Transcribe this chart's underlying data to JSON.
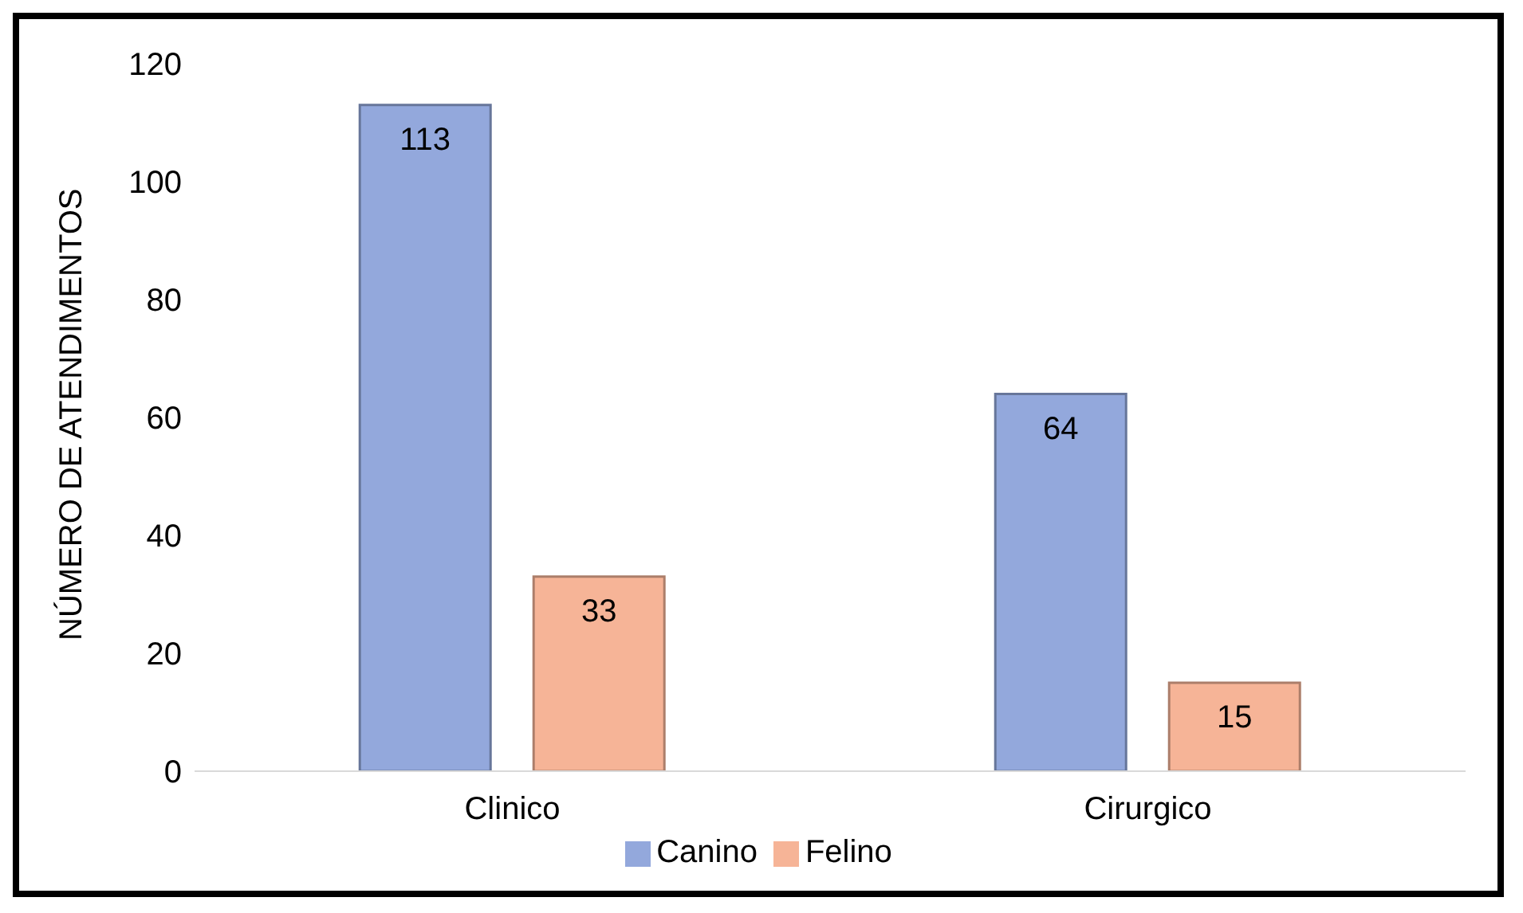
{
  "chart_data": {
    "type": "bar",
    "ylabel": "NÚMERO DE ATENDIMENTOS",
    "categories": [
      "Clinico",
      "Cirurgico"
    ],
    "series": [
      {
        "name": "Canino",
        "color": "#93a8dc",
        "values": [
          113,
          64
        ]
      },
      {
        "name": "Felino",
        "color": "#f6b497",
        "values": [
          33,
          15
        ]
      }
    ],
    "ylim": [
      0,
      120
    ],
    "yticks": [
      0,
      20,
      40,
      60,
      80,
      100,
      120
    ],
    "data_labels": true,
    "legend": "bottom",
    "grid": false
  }
}
